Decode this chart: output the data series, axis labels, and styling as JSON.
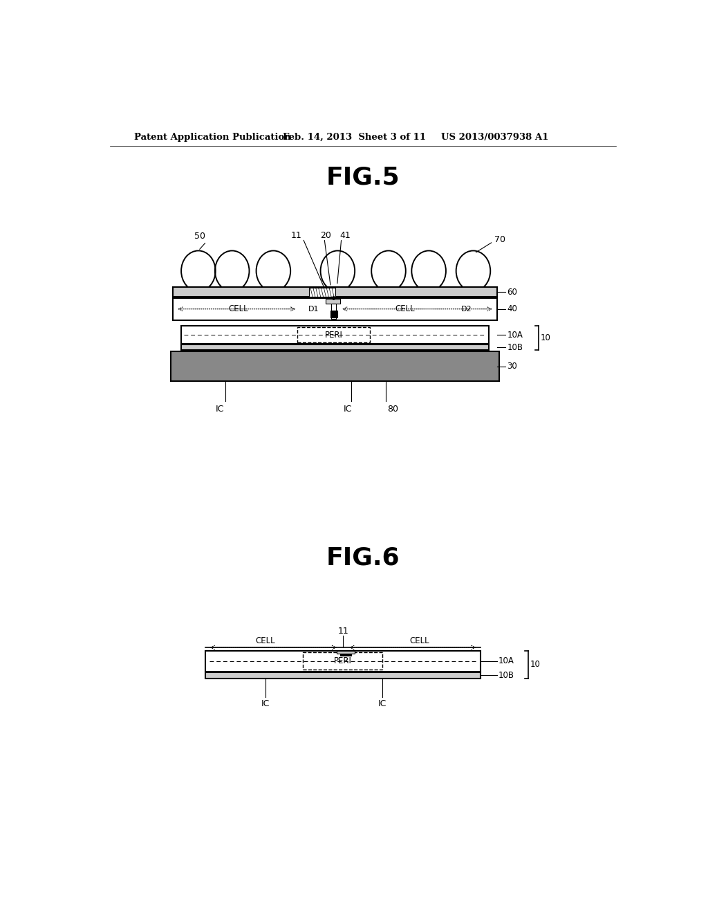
{
  "bg_color": "#ffffff",
  "header_text": "Patent Application Publication",
  "header_date": "Feb. 14, 2013  Sheet 3 of 11",
  "header_patent": "US 2013/0037938 A1",
  "fig5_title": "FIG.5",
  "fig6_title": "FIG.6",
  "lc": "#000000",
  "tc": "#000000",
  "gray_light": "#cccccc",
  "gray_med": "#aaaaaa",
  "gray_dark": "#666666",
  "gray_sub": "#888888"
}
